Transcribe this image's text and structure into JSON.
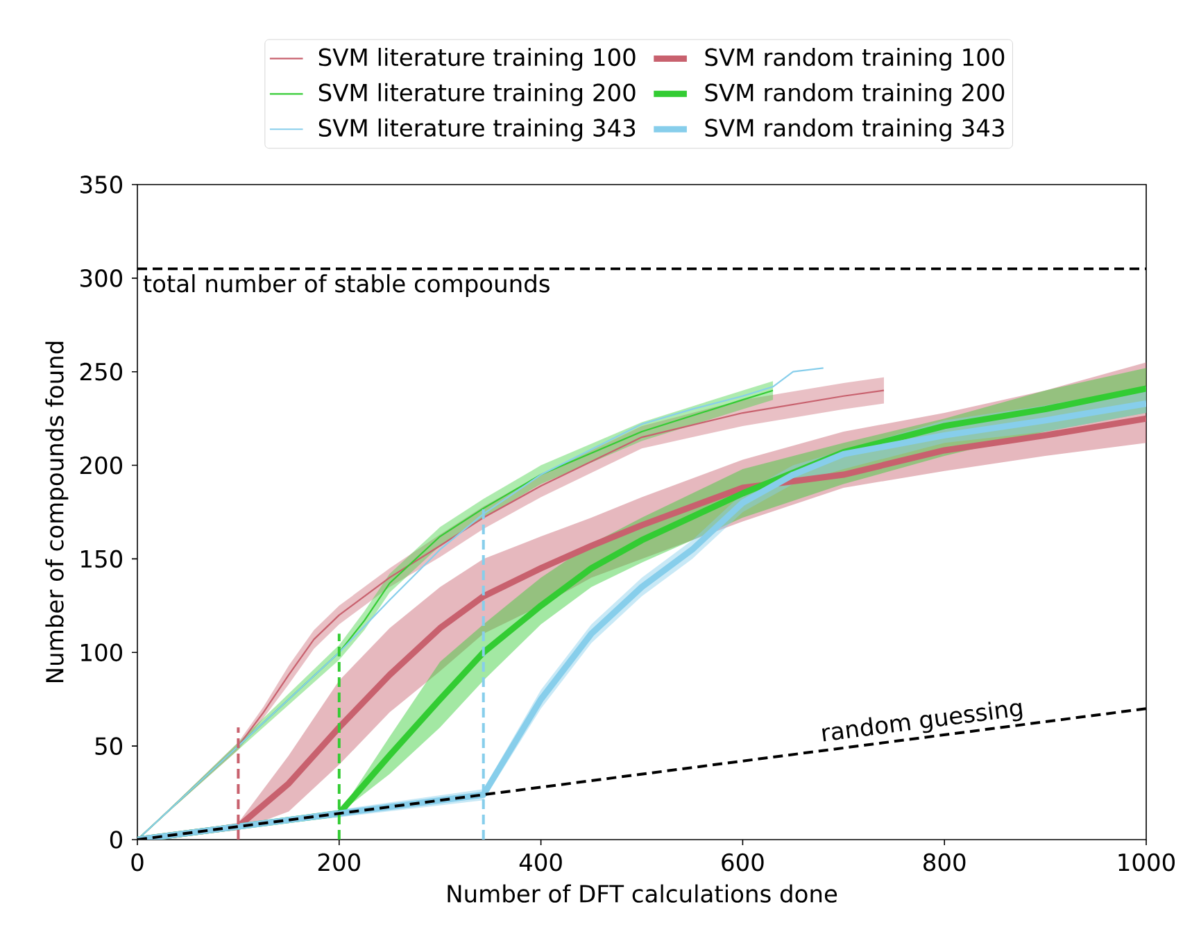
{
  "chart_data": {
    "type": "line",
    "xlabel": "Number of DFT calculations done",
    "ylabel": "Number of compounds found",
    "xlim": [
      0,
      1000
    ],
    "ylim": [
      0,
      350
    ],
    "xticks": [
      0,
      200,
      400,
      600,
      800,
      1000
    ],
    "yticks": [
      0,
      50,
      100,
      150,
      200,
      250,
      300,
      350
    ],
    "legend": "top",
    "ref_lines": [
      {
        "axis": "y",
        "value": 305,
        "label": "total number of stable compounds",
        "color": "#000000",
        "line_style": "dashed"
      }
    ],
    "series": [
      {
        "name": "SVM literature training 100",
        "color": "#c8616e",
        "x": [
          0,
          100,
          125,
          150,
          175,
          200,
          250,
          300,
          343,
          400,
          500,
          600,
          700,
          740
        ],
        "values": [
          0,
          50,
          68,
          88,
          107,
          120,
          140,
          157,
          172,
          189,
          215,
          228,
          237,
          240
        ],
        "lower": [
          0,
          48,
          65,
          83,
          102,
          115,
          135,
          151,
          166,
          183,
          209,
          221,
          230,
          233
        ],
        "upper": [
          0,
          52,
          71,
          93,
          112,
          125,
          145,
          163,
          178,
          195,
          221,
          235,
          244,
          247
        ]
      },
      {
        "name": "SVM literature training 200",
        "color": "#33cc33",
        "x": [
          0,
          100,
          200,
          225,
          250,
          300,
          343,
          400,
          500,
          600,
          630
        ],
        "values": [
          0,
          50,
          100,
          117,
          137,
          162,
          177,
          195,
          218,
          235,
          240
        ],
        "lower": [
          0,
          48,
          96,
          112,
          132,
          157,
          172,
          190,
          213,
          230,
          235
        ],
        "upper": [
          0,
          52,
          104,
          122,
          142,
          167,
          182,
          200,
          223,
          240,
          245
        ]
      },
      {
        "name": "SVM literature training 343",
        "color": "#87ceeb",
        "x": [
          0,
          100,
          200,
          250,
          300,
          343,
          400,
          500,
          550,
          600,
          630,
          650,
          680
        ],
        "values": [
          0,
          50,
          100,
          128,
          155,
          174,
          195,
          222,
          230,
          237,
          242,
          250,
          252
        ]
      },
      {
        "name": "SVM random training 100",
        "color": "#c8616e",
        "x": [
          0,
          100,
          150,
          200,
          250,
          300,
          343,
          400,
          450,
          500,
          600,
          700,
          800,
          900,
          1000
        ],
        "values": [
          0,
          7,
          30,
          60,
          88,
          113,
          130,
          145,
          157,
          168,
          188,
          195,
          208,
          216,
          225
        ],
        "lower": [
          0,
          5,
          15,
          40,
          68,
          90,
          110,
          125,
          140,
          150,
          170,
          188,
          197,
          205,
          212
        ],
        "upper": [
          0,
          9,
          45,
          85,
          113,
          135,
          150,
          162,
          172,
          183,
          203,
          218,
          228,
          240,
          255
        ]
      },
      {
        "name": "SVM random training 200",
        "color": "#33cc33",
        "x": [
          0,
          100,
          200,
          250,
          300,
          343,
          400,
          450,
          500,
          600,
          700,
          800,
          900,
          1000
        ],
        "values": [
          0,
          7,
          14,
          45,
          75,
          100,
          125,
          145,
          160,
          185,
          207,
          221,
          230,
          241
        ],
        "lower": [
          0,
          7,
          14,
          35,
          60,
          85,
          115,
          135,
          148,
          172,
          190,
          205,
          218,
          228
        ],
        "upper": [
          0,
          7,
          14,
          55,
          95,
          115,
          140,
          158,
          172,
          198,
          212,
          225,
          240,
          252
        ]
      },
      {
        "name": "SVM random training 343",
        "color": "#87ceeb",
        "x": [
          0,
          200,
          343,
          400,
          450,
          500,
          550,
          600,
          650,
          700,
          800,
          900,
          1000
        ],
        "values": [
          0,
          14,
          24,
          75,
          110,
          135,
          155,
          180,
          195,
          206,
          216,
          224,
          233
        ],
        "lower": [
          0,
          12,
          21,
          70,
          105,
          130,
          150,
          175,
          190,
          198,
          212,
          218,
          228
        ],
        "upper": [
          0,
          16,
          27,
          80,
          115,
          140,
          160,
          185,
          200,
          208,
          224,
          232,
          242
        ]
      },
      {
        "color": "#c8616e",
        "line_style": "dashed",
        "x": [
          100,
          100
        ],
        "values": [
          0,
          60
        ]
      },
      {
        "color": "#33cc33",
        "line_style": "dashed",
        "x": [
          200,
          200
        ],
        "values": [
          0,
          110
        ]
      },
      {
        "color": "#87ceeb",
        "line_style": "dashed",
        "x": [
          343,
          343
        ],
        "values": [
          0,
          178
        ]
      },
      {
        "name": "random guessing",
        "color": "#000000",
        "line_style": "dashed",
        "x": [
          0,
          1000
        ],
        "values": [
          0,
          70
        ]
      }
    ]
  }
}
